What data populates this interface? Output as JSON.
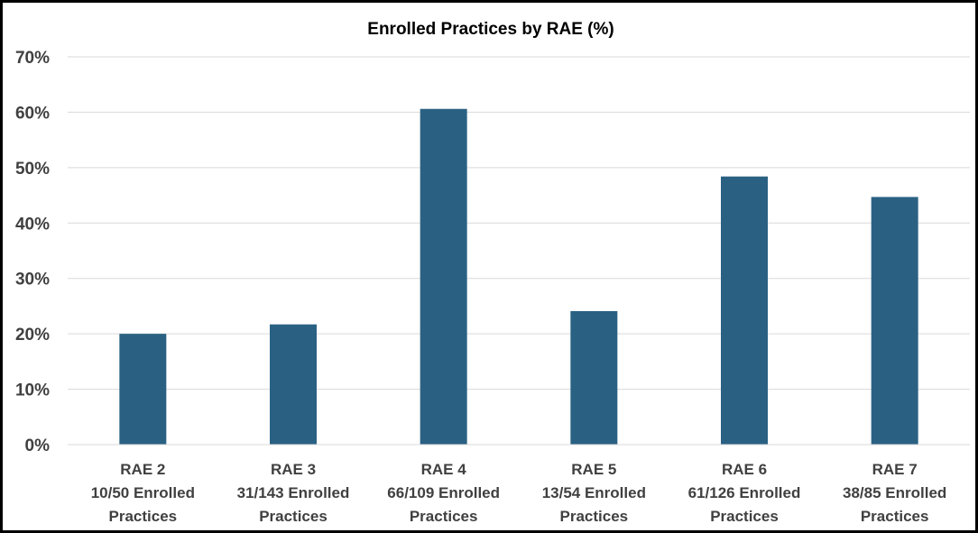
{
  "chart_data": {
    "type": "bar",
    "title": "Enrolled Practices by RAE (%)",
    "xlabel": "",
    "ylabel": "",
    "categories": [
      [
        "RAE 2",
        "10/50 Enrolled",
        "Practices"
      ],
      [
        "RAE 3",
        "31/143 Enrolled",
        "Practices"
      ],
      [
        "RAE 4",
        "66/109 Enrolled",
        "Practices"
      ],
      [
        "RAE 5",
        "13/54 Enrolled",
        "Practices"
      ],
      [
        "RAE 6",
        "61/126 Enrolled",
        "Practices"
      ],
      [
        "RAE 7",
        "38/85 Enrolled",
        "Practices"
      ]
    ],
    "values": [
      20.0,
      21.7,
      60.6,
      24.1,
      48.4,
      44.7
    ],
    "ylim": [
      0,
      70
    ],
    "yticks": [
      0,
      10,
      20,
      30,
      40,
      50,
      60,
      70
    ],
    "ytick_labels": [
      "0%",
      "10%",
      "20%",
      "30%",
      "40%",
      "50%",
      "60%",
      "70%"
    ],
    "grid": true,
    "bar_color": "#2a6183",
    "legend": "none"
  }
}
